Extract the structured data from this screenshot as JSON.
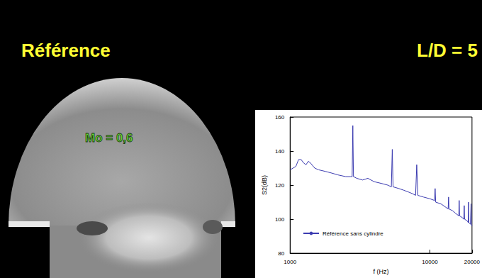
{
  "slide": {
    "title": "Référence",
    "subtitle": "L/D = 5",
    "image_label": "Mo = 0,6"
  },
  "chart_data": {
    "type": "line",
    "x_label": "f (Hz)",
    "y_label": "S2(dB)",
    "x": [
      1000,
      1050,
      1100,
      1150,
      1200,
      1250,
      1300,
      1350,
      1400,
      1500,
      1600,
      1800,
      2000,
      2200,
      2500,
      2700,
      2780,
      2810,
      2840,
      3000,
      3300,
      3600,
      4000,
      4500,
      5000,
      5300,
      5380,
      5450,
      6000,
      6500,
      7000,
      7500,
      7900,
      8050,
      8200,
      9000,
      10000,
      10800,
      10900,
      11000,
      12000,
      13000,
      13500,
      13600,
      13700,
      14500,
      15500,
      16100,
      16200,
      16300,
      17000,
      17500,
      17600,
      17700,
      18500,
      18800,
      18900,
      19000,
      19500,
      19700,
      19800,
      20000
    ],
    "series": [
      {
        "name": "Référence sans cylindre",
        "color": "#3b3bb0",
        "values": [
          129,
          130,
          131,
          135,
          135,
          133,
          132,
          134,
          133,
          130,
          129,
          128,
          127,
          126,
          125,
          125,
          125,
          155,
          125,
          124,
          123,
          124,
          122,
          121,
          120,
          119,
          141,
          119,
          118,
          117,
          116,
          115,
          114,
          132,
          114,
          113,
          112,
          111,
          118,
          110,
          109,
          107,
          106,
          113,
          106,
          105,
          103,
          102,
          111,
          102,
          101,
          100,
          108,
          100,
          99,
          98,
          110,
          98,
          97,
          109,
          97,
          96
        ]
      }
    ],
    "xlim": [
      1000,
      20000
    ],
    "xticks": [
      1000,
      10000,
      20000
    ],
    "ylim": [
      80,
      160
    ],
    "yticks": [
      80,
      100,
      120,
      140,
      160
    ],
    "log": "x",
    "grid": false,
    "legend": "lower left"
  }
}
